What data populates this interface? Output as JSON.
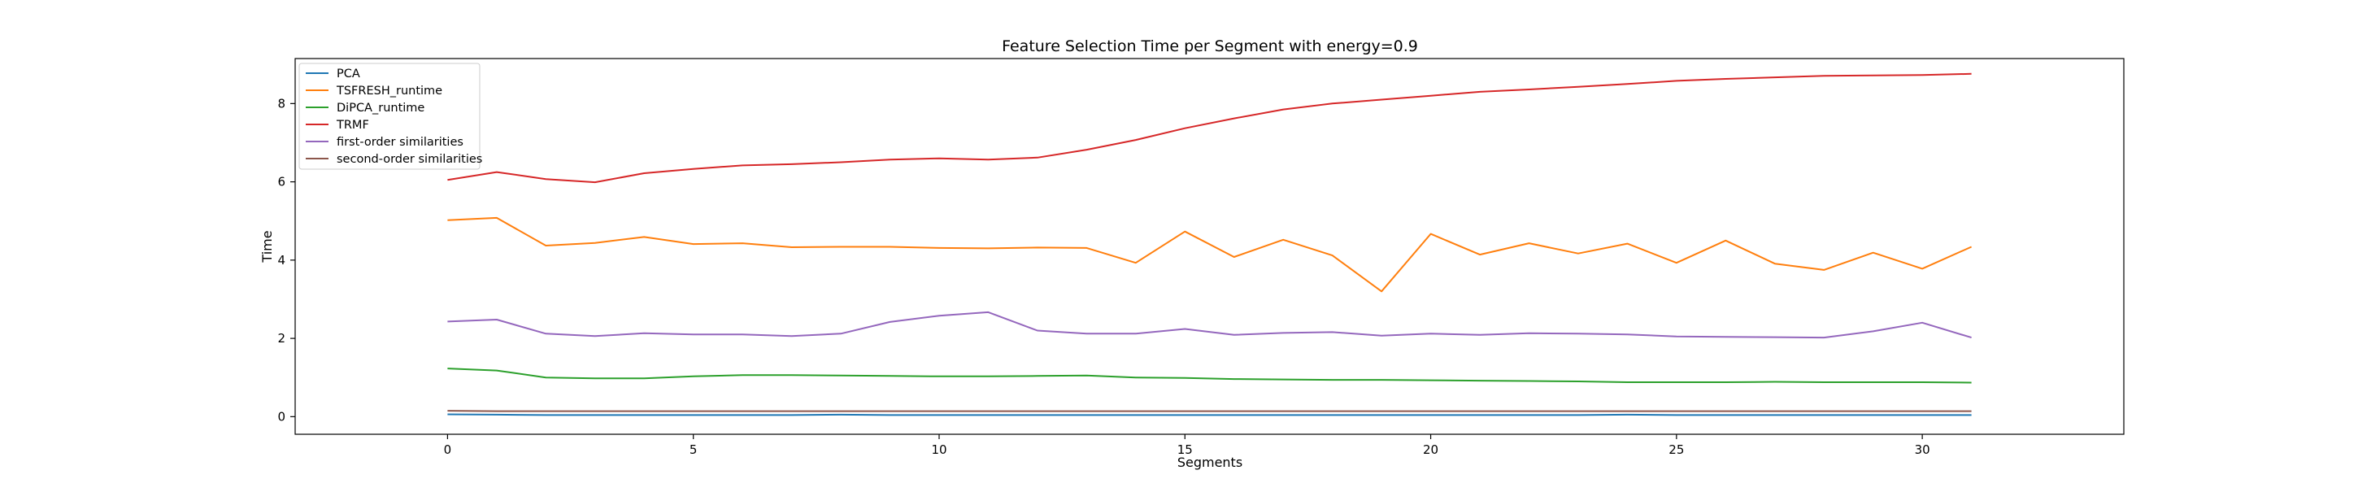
{
  "chart_data": {
    "type": "line",
    "title": "Feature Selection Time per Segment with energy=0.9",
    "xlabel": "Segments",
    "ylabel": "Time",
    "xlim": [
      -3.1,
      34.1
    ],
    "ylim": [
      -0.45,
      9.15
    ],
    "xticks": [
      0,
      5,
      10,
      15,
      20,
      25,
      30
    ],
    "yticks": [
      0,
      2,
      4,
      6,
      8
    ],
    "grid": false,
    "legend_position": "top-left",
    "x": [
      0,
      1,
      2,
      3,
      4,
      5,
      6,
      7,
      8,
      9,
      10,
      11,
      12,
      13,
      14,
      15,
      16,
      17,
      18,
      19,
      20,
      21,
      22,
      23,
      24,
      25,
      26,
      27,
      28,
      29,
      30,
      31
    ],
    "series": [
      {
        "name": "PCA",
        "color": "#1f77b4",
        "values": [
          0.06,
          0.05,
          0.04,
          0.04,
          0.04,
          0.04,
          0.04,
          0.04,
          0.05,
          0.04,
          0.04,
          0.04,
          0.04,
          0.04,
          0.04,
          0.04,
          0.04,
          0.04,
          0.04,
          0.04,
          0.04,
          0.04,
          0.04,
          0.04,
          0.05,
          0.04,
          0.04,
          0.04,
          0.04,
          0.04,
          0.04,
          0.04
        ]
      },
      {
        "name": "TSFRESH_runtime",
        "color": "#ff7f0e",
        "values": [
          5.02,
          5.08,
          4.37,
          4.44,
          4.59,
          4.41,
          4.43,
          4.33,
          4.34,
          4.34,
          4.31,
          4.3,
          4.32,
          4.31,
          3.93,
          4.73,
          4.08,
          4.52,
          4.12,
          3.2,
          4.67,
          4.14,
          4.43,
          4.17,
          4.42,
          3.93,
          4.5,
          3.91,
          3.75,
          4.19,
          3.78,
          4.34
        ]
      },
      {
        "name": "DiPCA_runtime",
        "color": "#2ca02c",
        "values": [
          1.23,
          1.18,
          1.0,
          0.98,
          0.98,
          1.03,
          1.06,
          1.06,
          1.05,
          1.04,
          1.03,
          1.03,
          1.04,
          1.05,
          1.0,
          0.99,
          0.96,
          0.95,
          0.94,
          0.94,
          0.93,
          0.92,
          0.91,
          0.9,
          0.88,
          0.88,
          0.88,
          0.89,
          0.88,
          0.88,
          0.88,
          0.87
        ]
      },
      {
        "name": "TRMF",
        "color": "#d62728",
        "values": [
          6.05,
          6.25,
          6.07,
          5.99,
          6.22,
          6.33,
          6.42,
          6.45,
          6.5,
          6.57,
          6.6,
          6.57,
          6.62,
          6.82,
          7.07,
          7.37,
          7.62,
          7.85,
          8.0,
          8.1,
          8.2,
          8.3,
          8.36,
          8.43,
          8.5,
          8.58,
          8.63,
          8.67,
          8.71,
          8.72,
          8.73,
          8.76
        ]
      },
      {
        "name": "first-order similarities",
        "color": "#9467bd",
        "values": [
          2.43,
          2.48,
          2.12,
          2.06,
          2.13,
          2.1,
          2.1,
          2.06,
          2.12,
          2.42,
          2.58,
          2.67,
          2.2,
          2.12,
          2.12,
          2.24,
          2.09,
          2.14,
          2.16,
          2.07,
          2.12,
          2.09,
          2.13,
          2.12,
          2.1,
          2.05,
          2.04,
          2.03,
          2.02,
          2.18,
          2.4,
          2.02
        ]
      },
      {
        "name": "second-order similarities",
        "color": "#8c564b",
        "values": [
          0.15,
          0.14,
          0.14,
          0.14,
          0.14,
          0.14,
          0.14,
          0.14,
          0.14,
          0.14,
          0.14,
          0.14,
          0.14,
          0.14,
          0.14,
          0.14,
          0.14,
          0.14,
          0.14,
          0.14,
          0.14,
          0.14,
          0.14,
          0.14,
          0.14,
          0.14,
          0.14,
          0.14,
          0.14,
          0.14,
          0.14,
          0.14
        ]
      }
    ]
  }
}
